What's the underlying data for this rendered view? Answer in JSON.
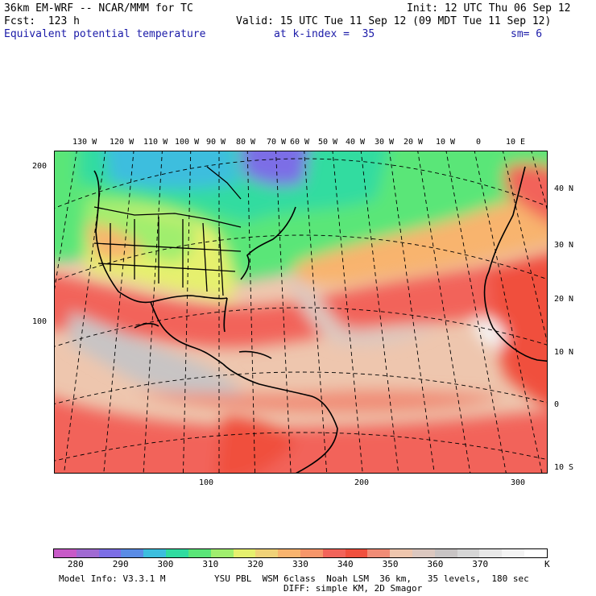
{
  "header": {
    "model": "36km EM-WRF -- NCAR/MMM for TC",
    "init": "Init: 12 UTC Thu 06 Sep 12",
    "fcst": "Fcst:  123 h",
    "valid": "Valid: 15 UTC Tue 11 Sep 12 (09 MDT Tue 11 Sep 12)",
    "field": "Equivalent potential temperature",
    "level": "at k-index =  35",
    "smooth": "sm= 6"
  },
  "map": {
    "lon_labels": [
      "130 W",
      "120 W",
      "110 W",
      "100 W",
      "90 W",
      "80 W",
      "70 W",
      "60 W",
      "50 W",
      "40 W",
      "30 W",
      "20 W",
      "10 W",
      "0",
      "10 E"
    ],
    "lat_labels": [
      "40 N",
      "30 N",
      "20 N",
      "10 N",
      "0",
      "10 S"
    ],
    "left_ticks": [
      "200",
      "100"
    ],
    "bottom_ticks": [
      "100",
      "200",
      "300"
    ]
  },
  "colorbar": {
    "colors": [
      "#c85ac8",
      "#a06ad2",
      "#7c6ee6",
      "#5a8ce6",
      "#3cbede",
      "#30dca0",
      "#5ae678",
      "#a0ee6e",
      "#e6f06e",
      "#f0d278",
      "#f8b46e",
      "#f6966a",
      "#f2645a",
      "#f0503e",
      "#f08c76",
      "#eec6ae",
      "#dcc8c0",
      "#c8c4c4",
      "#d6d6d6",
      "#e8e8e8",
      "#f4f4f4",
      "#ffffff"
    ],
    "labels": [
      "280",
      "290",
      "300",
      "310",
      "320",
      "330",
      "340",
      "350",
      "360",
      "370"
    ],
    "unit": "K"
  },
  "footer": {
    "model_info": "Model Info: V3.3.1 M",
    "physics": "YSU PBL  WSM 6class  Noah LSM  36 km,   35 levels,  180 sec",
    "diff": "DIFF: simple KM, 2D Smagor"
  }
}
